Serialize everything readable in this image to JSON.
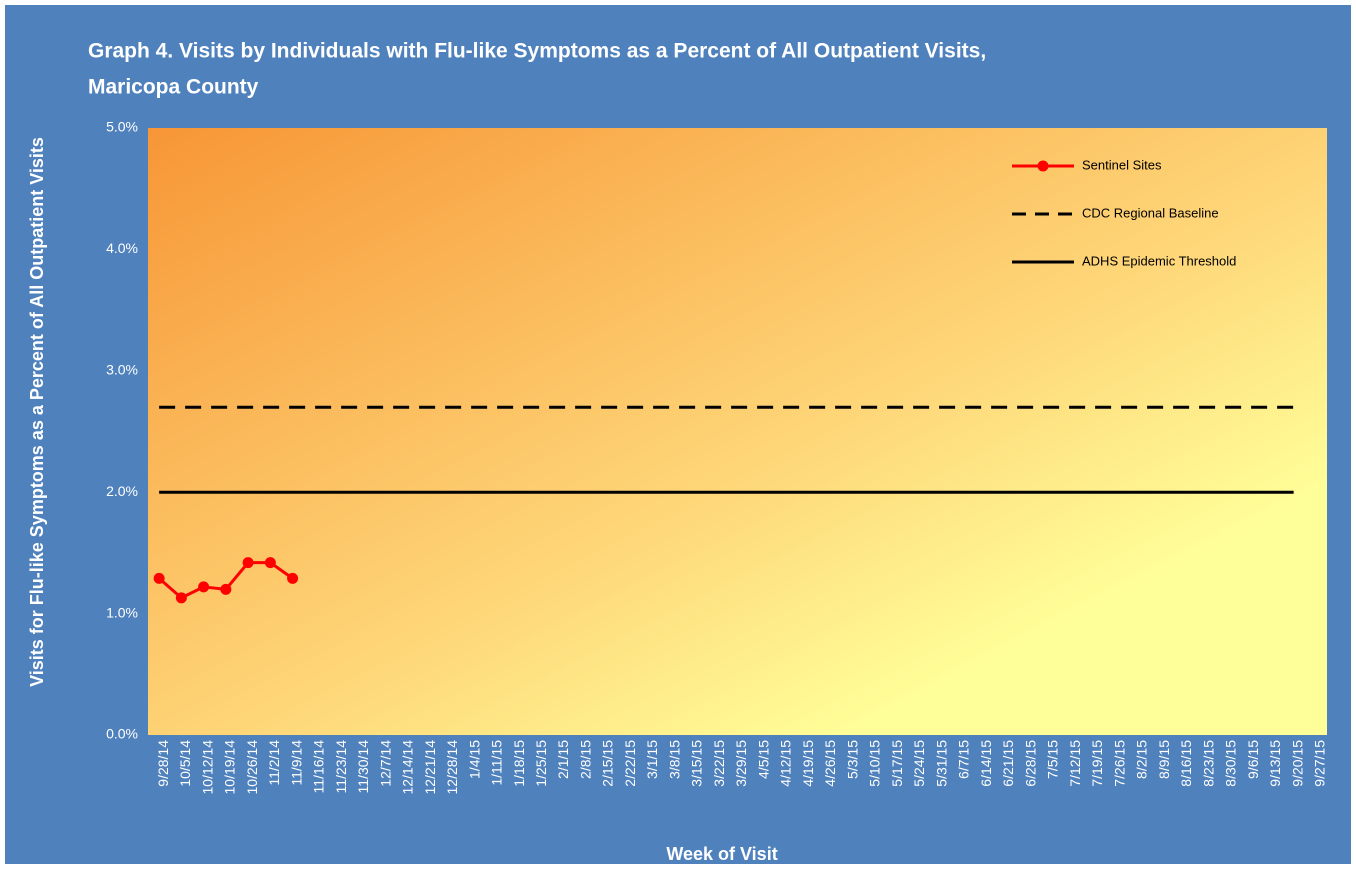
{
  "chart_data": {
    "type": "line",
    "title": "Graph 4. Visits by Individuals  with Flu-like Symptoms as a Percent of All Outpatient Visits,",
    "title_line2": "Maricopa  County",
    "x_label": "Week of Visit",
    "y_label": "Visits for Flu-like Symptoms as a Percent of All Outpatient Visits",
    "categories": [
      "9/28/14",
      "10/5/14",
      "10/12/14",
      "10/19/14",
      "10/26/14",
      "11/2/14",
      "11/9/14",
      "11/16/14",
      "11/23/14",
      "11/30/14",
      "12/7/14",
      "12/14/14",
      "12/21/14",
      "12/28/14",
      "1/4/15",
      "1/11/15",
      "1/18/15",
      "1/25/15",
      "2/1/15",
      "2/8/15",
      "2/15/15",
      "2/22/15",
      "3/1/15",
      "3/8/15",
      "3/15/15",
      "3/22/15",
      "3/29/15",
      "4/5/15",
      "4/12/15",
      "4/19/15",
      "4/26/15",
      "5/3/15",
      "5/10/15",
      "5/17/15",
      "5/24/15",
      "5/31/15",
      "6/7/15",
      "6/14/15",
      "6/21/15",
      "6/28/15",
      "7/5/15",
      "7/12/15",
      "7/19/15",
      "7/26/15",
      "8/2/15",
      "8/9/15",
      "8/16/15",
      "8/23/15",
      "8/30/15",
      "9/6/15",
      "9/13/15",
      "9/20/15",
      "9/27/15"
    ],
    "series": [
      {
        "name": "Sentinel Sites",
        "color": "#ff0000",
        "style": "solid",
        "marker": true,
        "values": [
          1.29,
          1.13,
          1.22,
          1.2,
          1.42,
          1.42,
          1.29,
          null,
          null,
          null,
          null,
          null,
          null,
          null,
          null,
          null,
          null,
          null,
          null,
          null,
          null,
          null,
          null,
          null,
          null,
          null,
          null,
          null,
          null,
          null,
          null,
          null,
          null,
          null,
          null,
          null,
          null,
          null,
          null,
          null,
          null,
          null,
          null,
          null,
          null,
          null,
          null,
          null,
          null,
          null,
          null,
          null,
          null
        ]
      },
      {
        "name": "CDC Regional Baseline",
        "color": "#000000",
        "style": "dashed",
        "marker": false,
        "values": [
          2.7,
          2.7,
          2.7,
          2.7,
          2.7,
          2.7,
          2.7,
          2.7,
          2.7,
          2.7,
          2.7,
          2.7,
          2.7,
          2.7,
          2.7,
          2.7,
          2.7,
          2.7,
          2.7,
          2.7,
          2.7,
          2.7,
          2.7,
          2.7,
          2.7,
          2.7,
          2.7,
          2.7,
          2.7,
          2.7,
          2.7,
          2.7,
          2.7,
          2.7,
          2.7,
          2.7,
          2.7,
          2.7,
          2.7,
          2.7,
          2.7,
          2.7,
          2.7,
          2.7,
          2.7,
          2.7,
          2.7,
          2.7,
          2.7,
          2.7,
          2.7,
          2.7,
          null
        ]
      },
      {
        "name": "ADHS Epidemic Threshold",
        "color": "#000000",
        "style": "solid",
        "marker": false,
        "values": [
          2.0,
          2.0,
          2.0,
          2.0,
          2.0,
          2.0,
          2.0,
          2.0,
          2.0,
          2.0,
          2.0,
          2.0,
          2.0,
          2.0,
          2.0,
          2.0,
          2.0,
          2.0,
          2.0,
          2.0,
          2.0,
          2.0,
          2.0,
          2.0,
          2.0,
          2.0,
          2.0,
          2.0,
          2.0,
          2.0,
          2.0,
          2.0,
          2.0,
          2.0,
          2.0,
          2.0,
          2.0,
          2.0,
          2.0,
          2.0,
          2.0,
          2.0,
          2.0,
          2.0,
          2.0,
          2.0,
          2.0,
          2.0,
          2.0,
          2.0,
          2.0,
          2.0,
          null
        ]
      }
    ],
    "ylim": [
      0,
      5
    ],
    "yticks": [
      {
        "value": 0,
        "label": "0.0%"
      },
      {
        "value": 1,
        "label": "1.0%"
      },
      {
        "value": 2,
        "label": "2.0%"
      },
      {
        "value": 3,
        "label": "3.0%"
      },
      {
        "value": 4,
        "label": "4.0%"
      },
      {
        "value": 5,
        "label": "5.0%"
      }
    ],
    "grid": false,
    "legend": "upper right"
  }
}
